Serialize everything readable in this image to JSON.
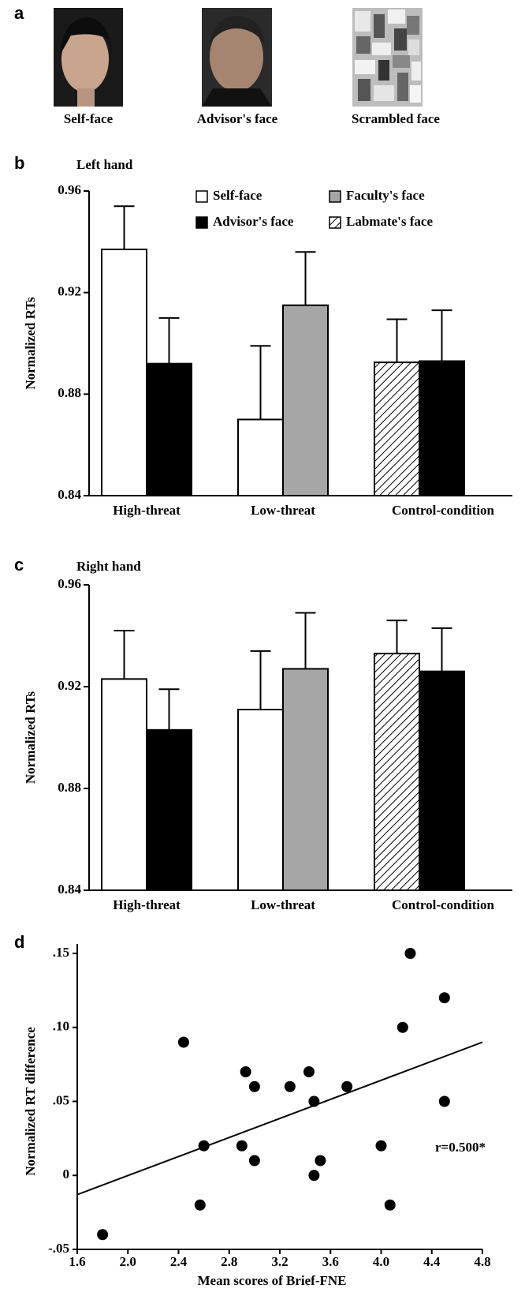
{
  "panel_a": {
    "label": "a",
    "captions": [
      "Self-face",
      "Advisor's face",
      "Scrambled face"
    ]
  },
  "chart_data": [
    {
      "type": "bar",
      "panel_label": "b",
      "title": "Left hand",
      "ylabel": "Normalized RTs",
      "categories": [
        "High-threat",
        "Low-threat",
        "Control-condition"
      ],
      "series": [
        {
          "name": "Self-face",
          "color": "#ffffff",
          "hatch": false,
          "values": [
            0.937,
            0.87,
            null
          ],
          "errors": [
            0.017,
            0.029,
            null
          ]
        },
        {
          "name": "Labmate's face",
          "color": "#ffffff",
          "hatch": true,
          "values": [
            null,
            null,
            0.8925
          ],
          "errors": [
            null,
            null,
            0.017
          ]
        },
        {
          "name": "Faculty's face",
          "color": "#a6a6a6",
          "hatch": false,
          "values": [
            null,
            0.915,
            null
          ],
          "errors": [
            null,
            0.021,
            null
          ]
        },
        {
          "name": "Advisor's face",
          "color": "#000000",
          "hatch": false,
          "values": [
            0.892,
            null,
            0.893
          ],
          "errors": [
            0.018,
            null,
            0.02
          ]
        }
      ],
      "ylim": [
        0.84,
        0.96
      ],
      "yticks": [
        0.84,
        0.88,
        0.92,
        0.96
      ],
      "legend": true
    },
    {
      "type": "bar",
      "panel_label": "c",
      "title": "Right hand",
      "ylabel": "Normalized RTs",
      "categories": [
        "High-threat",
        "Low-threat",
        "Control-condition"
      ],
      "series": [
        {
          "name": "Self-face",
          "color": "#ffffff",
          "hatch": false,
          "values": [
            0.923,
            0.911,
            null
          ],
          "errors": [
            0.019,
            0.023,
            null
          ]
        },
        {
          "name": "Labmate's face",
          "color": "#ffffff",
          "hatch": true,
          "values": [
            null,
            null,
            0.933
          ],
          "errors": [
            null,
            null,
            0.013
          ]
        },
        {
          "name": "Faculty's face",
          "color": "#a6a6a6",
          "hatch": false,
          "values": [
            null,
            0.927,
            null
          ],
          "errors": [
            null,
            0.022,
            null
          ]
        },
        {
          "name": "Advisor's face",
          "color": "#000000",
          "hatch": false,
          "values": [
            0.903,
            null,
            0.926
          ],
          "errors": [
            0.016,
            null,
            0.017
          ]
        }
      ],
      "ylim": [
        0.84,
        0.96
      ],
      "yticks": [
        0.84,
        0.88,
        0.92,
        0.96
      ],
      "legend": false
    },
    {
      "type": "scatter",
      "panel_label": "d",
      "xlabel": "Mean scores of Brief-FNE",
      "ylabel": "Normalized RT difference",
      "x": [
        1.8,
        2.44,
        2.57,
        2.6,
        2.9,
        2.93,
        3.0,
        3.0,
        3.28,
        3.43,
        3.47,
        3.47,
        3.52,
        3.73,
        4.0,
        4.07,
        4.17,
        4.23,
        4.5,
        4.5
      ],
      "y": [
        -0.04,
        0.09,
        -0.02,
        0.02,
        0.02,
        0.07,
        0.06,
        0.01,
        0.06,
        0.07,
        0.05,
        0.0,
        0.01,
        0.06,
        0.02,
        -0.02,
        0.1,
        0.15,
        0.12,
        0.05
      ],
      "color": "#000000",
      "fit": {
        "x": [
          1.6,
          4.8
        ],
        "y": [
          -0.013,
          0.09
        ]
      },
      "annotation": "r=0.500*",
      "xlim": [
        1.6,
        4.8
      ],
      "xticks": [
        1.6,
        {
          "value": 2.0,
          "label": "2.0"
        },
        2.4,
        2.8,
        3.2,
        3.6,
        {
          "value": 4.0,
          "label": "4.0"
        },
        4.4,
        4.8
      ],
      "ylim": [
        -0.05,
        0.15
      ],
      "yticks": [
        {
          "value": -0.05,
          "label": "-.05"
        },
        0,
        {
          "value": 0.05,
          "label": ".05"
        },
        {
          "value": 0.1,
          "label": ".10"
        },
        {
          "value": 0.15,
          "label": ".15"
        }
      ]
    }
  ]
}
